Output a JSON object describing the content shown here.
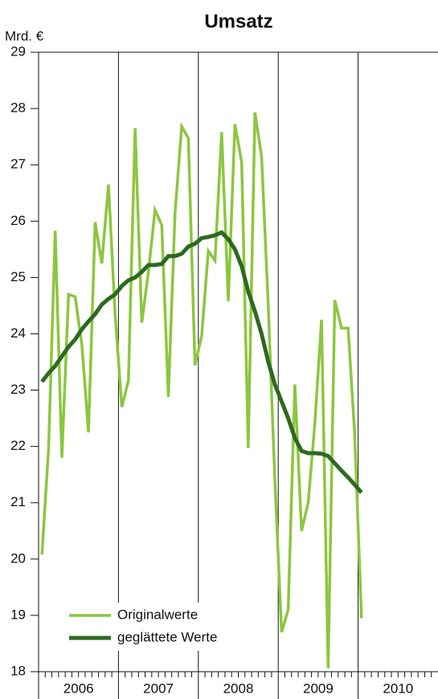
{
  "chart_data": {
    "type": "line",
    "title": "Umsatz",
    "y_label": "Mrd. €",
    "x": [
      2006.042,
      2006.125,
      2006.208,
      2006.292,
      2006.375,
      2006.458,
      2006.542,
      2006.625,
      2006.708,
      2006.792,
      2006.875,
      2006.958,
      2007.042,
      2007.125,
      2007.208,
      2007.292,
      2007.375,
      2007.458,
      2007.542,
      2007.625,
      2007.708,
      2007.792,
      2007.875,
      2007.958,
      2008.042,
      2008.125,
      2008.208,
      2008.292,
      2008.375,
      2008.458,
      2008.542,
      2008.625,
      2008.708,
      2008.792,
      2008.875,
      2008.958,
      2009.042,
      2009.125,
      2009.208,
      2009.292,
      2009.375,
      2009.458,
      2009.542,
      2009.625,
      2009.708,
      2009.792,
      2009.875,
      2009.958,
      2010.042
    ],
    "categories": [
      "2006",
      "2007",
      "2008",
      "2009",
      "2010"
    ],
    "series": [
      {
        "name": "Originalwerte",
        "color": "#8cc63f",
        "width": 3.5,
        "values": [
          20.08,
          21.95,
          25.83,
          21.8,
          24.7,
          24.66,
          23.8,
          22.25,
          25.98,
          25.25,
          26.65,
          24.35,
          22.7,
          23.17,
          27.65,
          24.2,
          25.1,
          26.2,
          25.93,
          22.88,
          26.15,
          27.68,
          27.47,
          23.44,
          23.97,
          25.47,
          25.3,
          27.58,
          24.58,
          27.72,
          27.05,
          21.97,
          27.93,
          27.15,
          24.5,
          21.4,
          18.7,
          19.1,
          23.1,
          20.5,
          21.0,
          22.4,
          24.25,
          18.06,
          24.6,
          24.1,
          24.1,
          22.2,
          18.95
        ]
      },
      {
        "name": "geglättete Werte",
        "color": "#2d6a1f",
        "width": 5,
        "values": [
          23.15,
          23.3,
          23.43,
          23.6,
          23.77,
          23.9,
          24.08,
          24.22,
          24.35,
          24.52,
          24.62,
          24.7,
          24.85,
          24.95,
          25.0,
          25.1,
          25.22,
          25.22,
          25.24,
          25.38,
          25.38,
          25.42,
          25.55,
          25.6,
          25.7,
          25.72,
          25.75,
          25.8,
          25.68,
          25.5,
          25.2,
          24.75,
          24.4,
          24.0,
          23.5,
          23.1,
          22.8,
          22.5,
          22.15,
          21.92,
          21.88,
          21.88,
          21.87,
          21.83,
          21.7,
          21.57,
          21.45,
          21.32,
          21.18
        ]
      }
    ],
    "xlim": [
      2006,
      2011
    ],
    "ylim": [
      18,
      29
    ],
    "yticks": [
      18,
      19,
      20,
      21,
      22,
      23,
      24,
      25,
      26,
      27,
      28,
      29
    ],
    "legend": "lower left"
  }
}
